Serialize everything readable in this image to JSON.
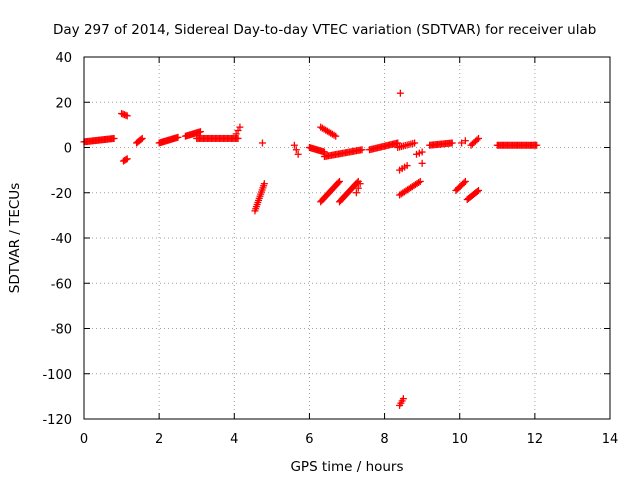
{
  "chart_data": {
    "type": "scatter",
    "title": "Day 297 of 2014, Sidereal Day-to-day VTEC variation (SDTVAR) for receiver ulab",
    "xlabel": "GPS time / hours",
    "ylabel": "SDTVAR / TECUs",
    "xlim": [
      0,
      14
    ],
    "ylim": [
      -120,
      40
    ],
    "xticks": [
      0,
      2,
      4,
      6,
      8,
      10,
      12,
      14
    ],
    "yticks": [
      -120,
      -100,
      -80,
      -60,
      -40,
      -20,
      0,
      20,
      40
    ],
    "grid": true,
    "marker": "+",
    "color": "#ff0000",
    "series": [
      {
        "name": "SDTVAR",
        "segments": [
          {
            "x": [
              0.0,
              0.8
            ],
            "y": [
              2.5,
              4.0
            ],
            "n": 26
          },
          {
            "x": [
              1.0,
              1.15
            ],
            "y": [
              15.0,
              14.0
            ],
            "n": 5
          },
          {
            "x": [
              1.05,
              1.15
            ],
            "y": [
              -6.0,
              -5.0
            ],
            "n": 4
          },
          {
            "x": [
              1.4,
              1.55
            ],
            "y": [
              2.0,
              4.0
            ],
            "n": 6
          },
          {
            "x": [
              2.0,
              2.5
            ],
            "y": [
              2.0,
              4.5
            ],
            "n": 18
          },
          {
            "x": [
              2.7,
              3.1
            ],
            "y": [
              5.0,
              7.0
            ],
            "n": 14
          },
          {
            "x": [
              3.0,
              4.1
            ],
            "y": [
              4.0,
              4.0
            ],
            "n": 32
          },
          {
            "x": [
              4.05,
              4.15
            ],
            "y": [
              6.0,
              9.0
            ],
            "n": 3
          },
          {
            "x": [
              4.55,
              4.8
            ],
            "y": [
              -28.0,
              -16.0
            ],
            "n": 14
          },
          {
            "x": [
              4.75,
              4.75
            ],
            "y": [
              2.0,
              2.0
            ],
            "n": 1
          },
          {
            "x": [
              5.6,
              5.7
            ],
            "y": [
              1.0,
              -3.0
            ],
            "n": 3
          },
          {
            "x": [
              6.0,
              6.4
            ],
            "y": [
              0.0,
              -2.0
            ],
            "n": 14
          },
          {
            "x": [
              6.3,
              6.7
            ],
            "y": [
              9.0,
              5.0
            ],
            "n": 10
          },
          {
            "x": [
              6.4,
              7.4
            ],
            "y": [
              -4.0,
              -1.0
            ],
            "n": 28
          },
          {
            "x": [
              6.3,
              6.8
            ],
            "y": [
              -24.0,
              -15.0
            ],
            "n": 18
          },
          {
            "x": [
              6.8,
              7.3
            ],
            "y": [
              -24.0,
              -15.0
            ],
            "n": 18
          },
          {
            "x": [
              7.25,
              7.35
            ],
            "y": [
              -20.0,
              -16.0
            ],
            "n": 3
          },
          {
            "x": [
              7.6,
              8.35
            ],
            "y": [
              -1.0,
              2.0
            ],
            "n": 22
          },
          {
            "x": [
              8.4,
              8.5
            ],
            "y": [
              -114.0,
              -111.0
            ],
            "n": 4
          },
          {
            "x": [
              8.42,
              8.42
            ],
            "y": [
              24.0,
              24.0
            ],
            "n": 1
          },
          {
            "x": [
              8.4,
              8.95
            ],
            "y": [
              -21.0,
              -15.0
            ],
            "n": 14
          },
          {
            "x": [
              8.4,
              8.6
            ],
            "y": [
              -10.0,
              -8.0
            ],
            "n": 4
          },
          {
            "x": [
              8.35,
              8.8
            ],
            "y": [
              0.0,
              2.0
            ],
            "n": 10
          },
          {
            "x": [
              8.85,
              9.0
            ],
            "y": [
              -3.0,
              -2.0
            ],
            "n": 3
          },
          {
            "x": [
              9.0,
              9.0
            ],
            "y": [
              -7.0,
              -7.0
            ],
            "n": 1
          },
          {
            "x": [
              9.2,
              9.8
            ],
            "y": [
              1.0,
              2.0
            ],
            "n": 18
          },
          {
            "x": [
              9.9,
              10.15
            ],
            "y": [
              -19.0,
              -15.0
            ],
            "n": 8
          },
          {
            "x": [
              10.05,
              10.15
            ],
            "y": [
              2.0,
              3.0
            ],
            "n": 2
          },
          {
            "x": [
              10.2,
              10.5
            ],
            "y": [
              -23.0,
              -19.0
            ],
            "n": 10
          },
          {
            "x": [
              10.3,
              10.5
            ],
            "y": [
              1.0,
              4.0
            ],
            "n": 6
          },
          {
            "x": [
              11.0,
              12.05
            ],
            "y": [
              1.0,
              1.0
            ],
            "n": 32
          }
        ]
      }
    ]
  }
}
